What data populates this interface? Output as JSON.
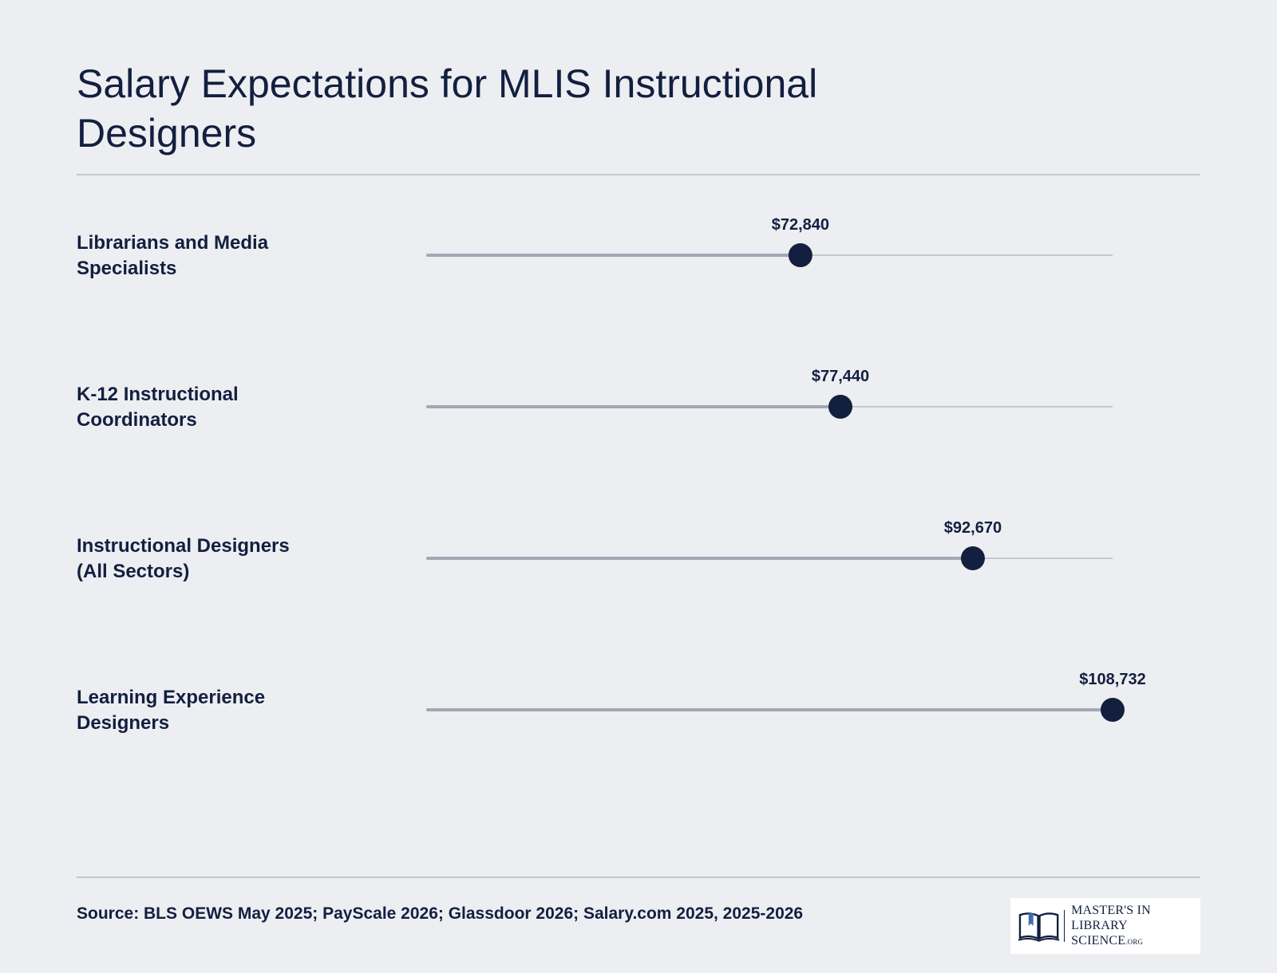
{
  "title": "Salary Expectations for MLIS Instructional Designers",
  "source": "Source: BLS OEWS May 2025; PayScale 2026; Glassdoor 2026; Salary.com 2025, 2025-2026",
  "logo": {
    "line1": "MASTER'S IN",
    "line2": "LIBRARY SCIENCE",
    "suffix": ".ORG"
  },
  "colors": {
    "background": "#edeef2",
    "text": "#131f3f",
    "dot": "#131f3f",
    "track": "#c6c8ce",
    "fill": "#a2a8b3"
  },
  "chart_data": {
    "type": "lollipop",
    "title": "Salary Expectations for MLIS Instructional Designers",
    "categories": [
      "Librarians and Media Specialists",
      "K-12 Instructional Coordinators",
      "Instructional Designers (All Sectors)",
      "Learning Experience Designers"
    ],
    "values": [
      72840,
      77440,
      92670,
      108732
    ],
    "value_labels": [
      "$72,840",
      "$77,440",
      "$92,670",
      "$108,732"
    ],
    "xlim": [
      30000,
      108732
    ],
    "grid": false,
    "legend": "none"
  }
}
